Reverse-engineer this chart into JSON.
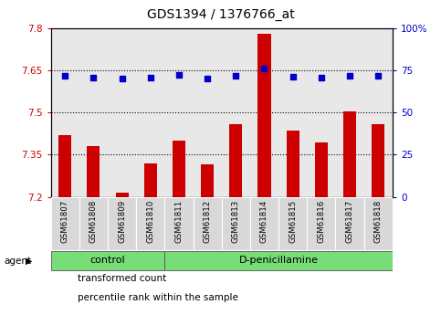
{
  "title": "GDS1394 / 1376766_at",
  "samples": [
    "GSM61807",
    "GSM61808",
    "GSM61809",
    "GSM61810",
    "GSM61811",
    "GSM61812",
    "GSM61813",
    "GSM61814",
    "GSM61815",
    "GSM61816",
    "GSM61817",
    "GSM61818"
  ],
  "transformed_count": [
    7.42,
    7.38,
    7.215,
    7.32,
    7.4,
    7.315,
    7.46,
    7.78,
    7.435,
    7.395,
    7.505,
    7.46
  ],
  "percentile_rank": [
    72,
    71,
    70,
    71,
    72.5,
    70,
    72,
    76,
    71.5,
    71,
    72,
    72
  ],
  "ylim_left": [
    7.2,
    7.8
  ],
  "ylim_right": [
    0,
    100
  ],
  "yticks_left": [
    7.2,
    7.35,
    7.5,
    7.65,
    7.8
  ],
  "yticks_right": [
    0,
    25,
    50,
    75,
    100
  ],
  "bar_color": "#cc0000",
  "scatter_color": "#0000cc",
  "control_count": 4,
  "control_label": "control",
  "treatment_label": "D-penicillamine",
  "agent_label": "agent",
  "legend_bar_label": "transformed count",
  "legend_scatter_label": "percentile rank within the sample",
  "plot_bg_color": "#e8e8e8",
  "sample_bg_color": "#d8d8d8",
  "group_bg_color": "#77dd77",
  "dotted_line_color": "#000000",
  "title_fontsize": 10,
  "tick_fontsize": 7.5,
  "label_fontsize": 8
}
